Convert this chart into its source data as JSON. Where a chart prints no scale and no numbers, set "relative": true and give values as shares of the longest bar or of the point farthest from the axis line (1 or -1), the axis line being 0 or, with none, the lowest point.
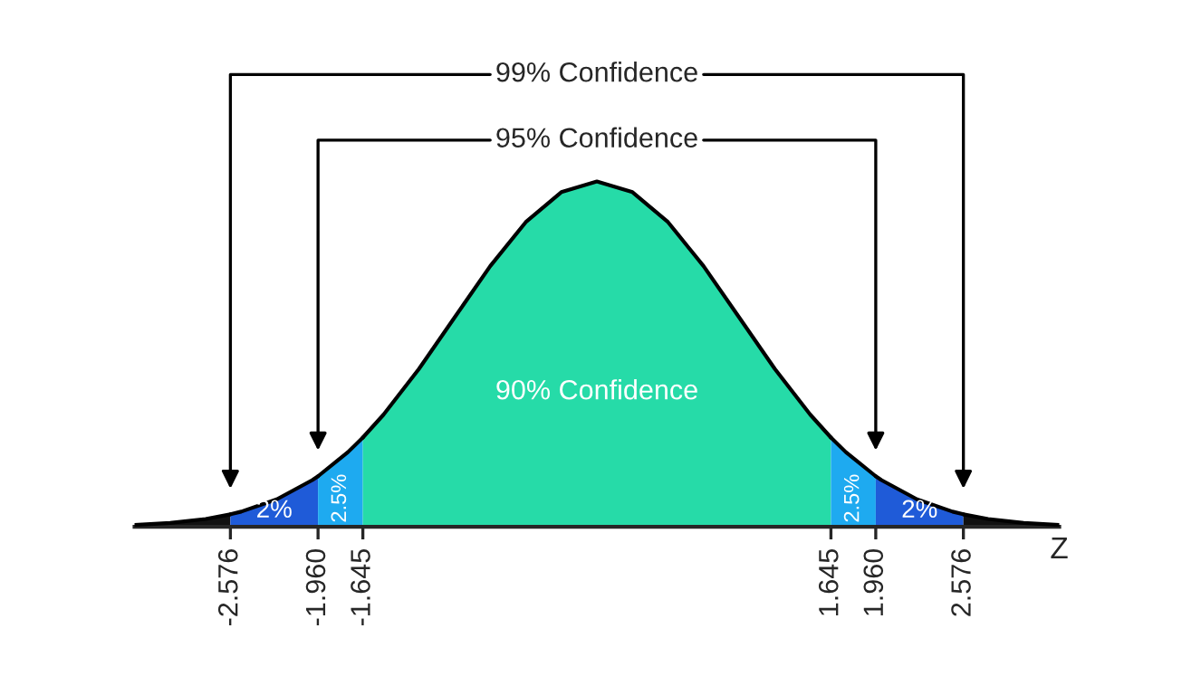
{
  "chart_data": {
    "type": "area",
    "relative": true,
    "xlabel": "Z",
    "series": [
      {
        "color": "#111111",
        "x": [
          -3.25,
          -3,
          -2.75,
          -2.576
        ],
        "values": [
          0.0051,
          0.0111,
          0.0228,
          0.0362
        ]
      },
      {
        "color": "#1f5bd8",
        "x": [
          -2.576,
          -2.5,
          -2.25,
          -2,
          -1.96
        ],
        "values": [
          0.0362,
          0.0439,
          0.0796,
          0.1353,
          0.1465
        ]
      },
      {
        "color": "#1eaaf0",
        "x": [
          -1.96,
          -1.75,
          -1.645
        ],
        "values": [
          0.1465,
          0.2163,
          0.2585
        ]
      },
      {
        "color": "#26dba8",
        "x": [
          -1.645,
          -1.5,
          -1.25,
          -1,
          -0.75,
          -0.5,
          -0.25,
          0,
          0.25,
          0.5,
          0.75,
          1,
          1.25,
          1.5,
          1.645
        ],
        "values": [
          0.2585,
          0.3247,
          0.4578,
          0.6065,
          0.7548,
          0.8825,
          0.9692,
          1,
          0.9692,
          0.8825,
          0.7548,
          0.6065,
          0.4578,
          0.3247,
          0.2585
        ]
      },
      {
        "color": "#1eaaf0",
        "x": [
          1.645,
          1.75,
          1.96
        ],
        "values": [
          0.2585,
          0.2163,
          0.1465
        ]
      },
      {
        "color": "#1f5bd8",
        "x": [
          1.96,
          2,
          2.25,
          2.5,
          2.576
        ],
        "values": [
          0.1465,
          0.1353,
          0.0796,
          0.0439,
          0.0362
        ]
      },
      {
        "color": "#111111",
        "x": [
          2.576,
          2.75,
          3,
          3.25
        ],
        "values": [
          0.0362,
          0.0228,
          0.0111,
          0.0051
        ]
      }
    ],
    "xlim": [
      -3.25,
      3.25
    ],
    "xticks": [
      {
        "value": -2.576,
        "label": "-2.576"
      },
      {
        "value": -1.96,
        "label": "-1.960"
      },
      {
        "value": -1.645,
        "label": "-1.645"
      },
      {
        "value": 1.645,
        "label": "1.645"
      },
      {
        "value": 1.96,
        "label": "1.960"
      },
      {
        "value": 2.576,
        "label": "2.576"
      }
    ],
    "annotations": [
      "99% Confidence",
      "95% Confidence",
      "2%",
      "2.5%",
      "90% Confidence",
      "2.5%",
      "2%"
    ]
  }
}
